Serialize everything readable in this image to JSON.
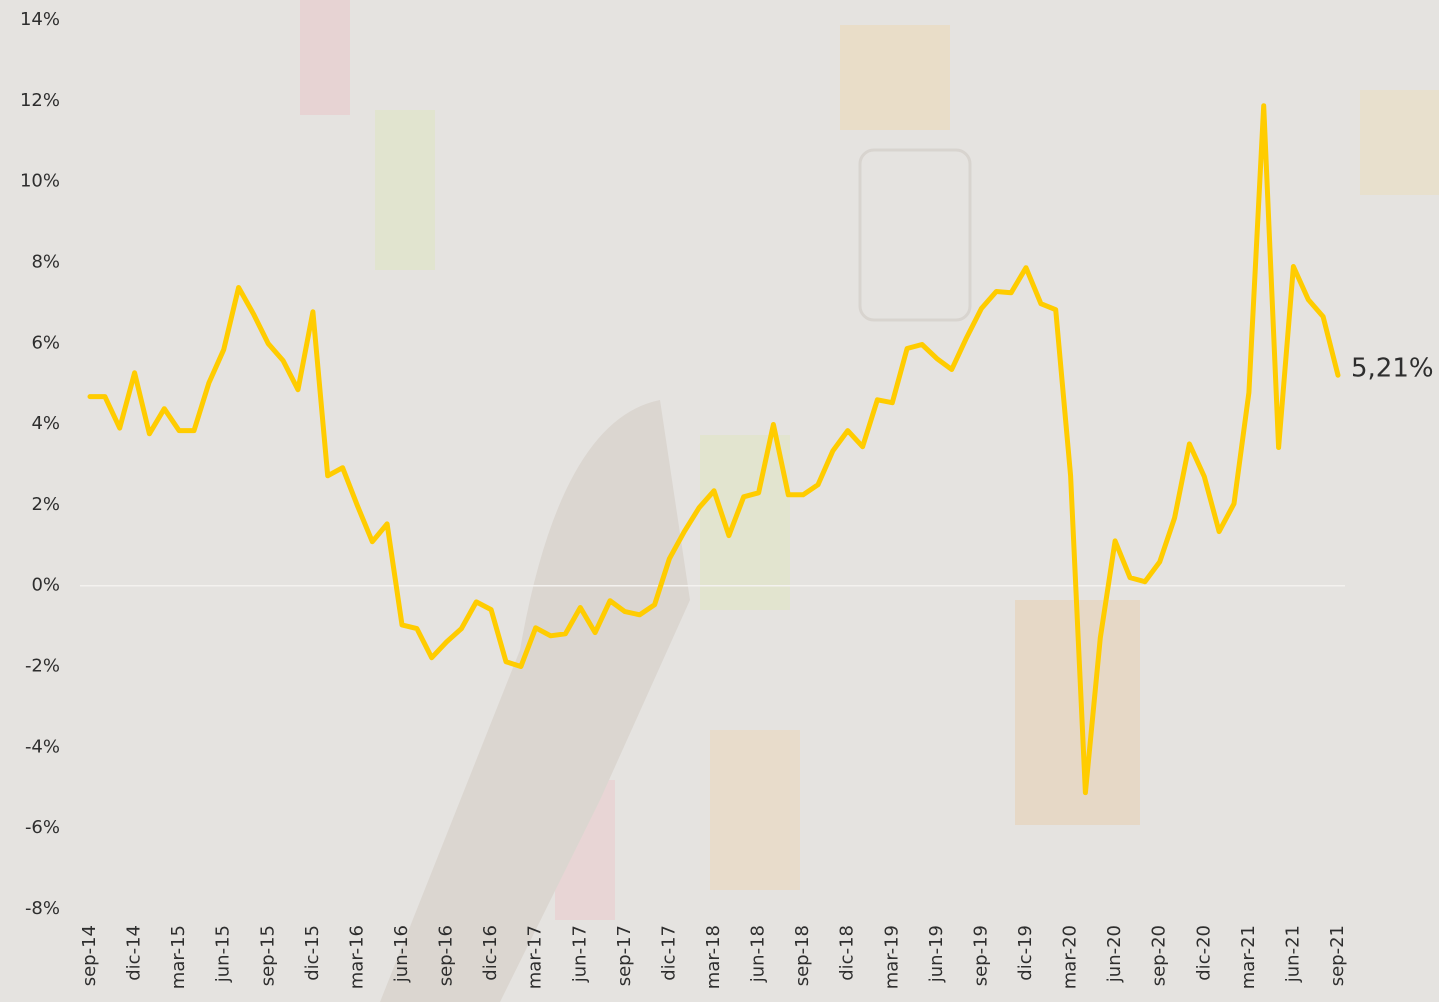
{
  "chart_data": {
    "type": "line",
    "color": "#ffcc00",
    "zero_line": true,
    "categories": [
      "sep-14",
      null,
      null,
      "dic-14",
      null,
      null,
      "mar-15",
      null,
      null,
      "jun-15",
      null,
      null,
      "sep-15",
      null,
      null,
      "dic-15",
      null,
      null,
      "mar-16",
      null,
      null,
      "jun-16",
      null,
      null,
      "sep-16",
      null,
      null,
      "dic-16",
      null,
      null,
      "mar-17",
      null,
      null,
      "jun-17",
      null,
      null,
      "sep-17",
      null,
      null,
      "dic-17",
      null,
      null,
      "mar-18",
      null,
      null,
      "jun-18",
      null,
      null,
      "sep-18",
      null,
      null,
      "dic-18",
      null,
      null,
      "mar-19",
      null,
      null,
      "jun-19",
      null,
      null,
      "sep-19",
      null,
      null,
      "dic-19",
      null,
      null,
      "mar-20",
      null,
      null,
      "jun-20",
      null,
      null,
      "sep-20",
      null,
      null,
      "dic-20",
      null,
      null,
      "mar-21",
      null,
      null,
      "jun-21",
      null,
      null,
      "sep-21"
    ],
    "values": [
      4.68,
      4.68,
      3.9,
      5.27,
      3.76,
      4.38,
      3.84,
      3.84,
      5.02,
      5.84,
      7.38,
      6.73,
      5.99,
      5.57,
      4.85,
      6.78,
      2.72,
      2.92,
      1.98,
      1.09,
      1.53,
      -0.97,
      -1.06,
      -1.78,
      -1.39,
      -1.06,
      -0.4,
      -0.59,
      -1.88,
      -2.0,
      -1.04,
      -1.24,
      -1.19,
      -0.54,
      -1.16,
      -0.37,
      -0.64,
      -0.72,
      -0.47,
      0.67,
      1.34,
      1.93,
      2.35,
      1.24,
      2.2,
      2.3,
      3.99,
      2.25,
      2.25,
      2.5,
      3.34,
      3.84,
      3.44,
      4.6,
      4.53,
      5.87,
      5.97,
      5.62,
      5.35,
      6.14,
      6.86,
      7.28,
      7.25,
      7.87,
      6.98,
      6.83,
      2.72,
      -5.12,
      -1.29,
      1.11,
      0.2,
      0.1,
      0.59,
      1.68,
      3.51,
      2.7,
      1.34,
      2.03,
      4.78,
      11.88,
      3.42,
      7.9,
      7.08,
      6.66,
      5.21
    ],
    "value_labels": [
      null,
      null,
      null,
      null,
      null,
      null,
      null,
      null,
      null,
      null,
      null,
      null,
      null,
      null,
      null,
      null,
      null,
      null,
      null,
      null,
      null,
      null,
      null,
      null,
      null,
      null,
      null,
      null,
      null,
      null,
      null,
      null,
      null,
      null,
      null,
      null,
      null,
      null,
      null,
      null,
      null,
      null,
      null,
      null,
      null,
      null,
      null,
      null,
      null,
      null,
      null,
      null,
      null,
      null,
      null,
      null,
      null,
      null,
      null,
      null,
      null,
      null,
      null,
      null,
      null,
      null,
      null,
      null,
      null,
      null,
      null,
      null,
      null,
      null,
      null,
      null,
      null,
      null,
      null,
      null,
      null,
      null,
      null,
      null,
      "5,21%"
    ],
    "ylim": [
      -8,
      14
    ],
    "yticks": [
      {
        "value": 14,
        "label": "14%"
      },
      {
        "value": 12,
        "label": "12%"
      },
      {
        "value": 10,
        "label": "10%"
      },
      {
        "value": 8,
        "label": "8%"
      },
      {
        "value": 6,
        "label": "6%"
      },
      {
        "value": 4,
        "label": "4%"
      },
      {
        "value": 2,
        "label": "2%"
      },
      {
        "value": 0,
        "label": "0%"
      },
      {
        "value": -2,
        "label": "-2%"
      },
      {
        "value": -4,
        "label": "-4%"
      },
      {
        "value": -6,
        "label": "-6%"
      },
      {
        "value": -8,
        "label": "-8%"
      }
    ]
  }
}
